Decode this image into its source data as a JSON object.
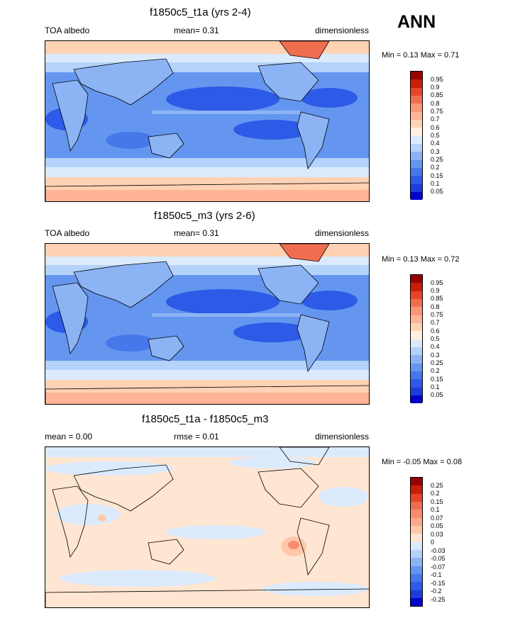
{
  "season": "ANN",
  "colors": {
    "fields": [
      "#00008c",
      "#0000cd",
      "#1e3cdc",
      "#2d5ae6",
      "#4678eb",
      "#6496f0",
      "#8cb4f5",
      "#b4d2fa",
      "#dceafd",
      "#fff0e1",
      "#ffd2b4",
      "#ffb496",
      "#fa9678",
      "#f06e50",
      "#e64628",
      "#c81e0a",
      "#960000"
    ],
    "diff": [
      "#00008c",
      "#0000cd",
      "#1e3cdc",
      "#2d5ae6",
      "#4678eb",
      "#6496f0",
      "#8cb4f5",
      "#b4d2fa",
      "#dceafd",
      "#ffe6d2",
      "#ffc8aa",
      "#ffaa8c",
      "#fa8c6e",
      "#f06e50",
      "#e64628",
      "#c81e0a",
      "#960000"
    ]
  },
  "panels": [
    {
      "title": "f1850c5_t1a (yrs 2-4)",
      "left": "TOA albedo",
      "center": "mean=   0.31",
      "right": "dimensionless",
      "minmax": "Min =   0.13 Max =   0.71",
      "levels": [
        "0.95",
        "0.9",
        "0.85",
        "0.8",
        "0.75",
        "0.7",
        "0.6",
        "0.5",
        "0.4",
        "0.3",
        "0.25",
        "0.2",
        "0.15",
        "0.1",
        "0.05"
      ]
    },
    {
      "title": "f1850c5_m3 (yrs 2-6)",
      "left": "TOA albedo",
      "center": "mean=   0.31",
      "right": "dimensionless",
      "minmax": "Min =   0.13 Max =   0.72",
      "levels": [
        "0.95",
        "0.9",
        "0.85",
        "0.8",
        "0.75",
        "0.7",
        "0.6",
        "0.5",
        "0.4",
        "0.3",
        "0.25",
        "0.2",
        "0.15",
        "0.1",
        "0.05"
      ]
    },
    {
      "title": "f1850c5_t1a - f1850c5_m3",
      "left": "mean =   0.00",
      "center": "rmse =   0.01",
      "right": "dimensionless",
      "minmax": "Min =  -0.05 Max =   0.08",
      "levels": [
        "0.25",
        "0.2",
        "0.15",
        "0.1",
        "0.07",
        "0.05",
        "0.03",
        "0",
        "-0.03",
        "-0.05",
        "-0.07",
        "-0.1",
        "-0.15",
        "-0.2",
        "-0.25"
      ]
    }
  ]
}
